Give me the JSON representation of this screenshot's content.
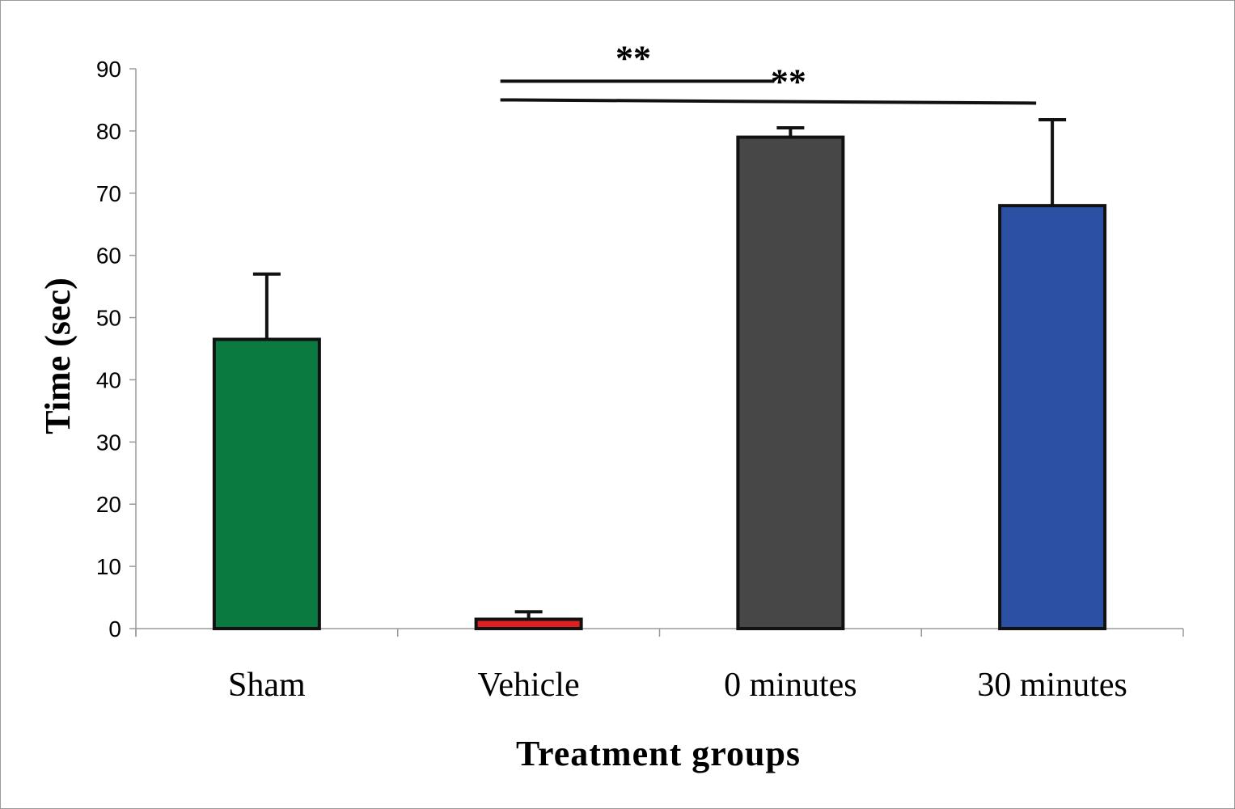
{
  "chart_data": {
    "type": "bar",
    "title": "",
    "xlabel": "Treatment groups",
    "ylabel": "Time (sec)",
    "ylim": [
      0,
      90
    ],
    "yticks": [
      0,
      10,
      20,
      30,
      40,
      50,
      60,
      70,
      80,
      90
    ],
    "yticklabels": [
      "0",
      "10",
      "20",
      "30",
      "40",
      "50",
      "60",
      "70",
      "80",
      "90"
    ],
    "categories": [
      "Sham",
      "Vehicle",
      "0 minutes",
      "30 minutes"
    ],
    "values": [
      46.5,
      1.5,
      79,
      68
    ],
    "errors": [
      10.5,
      1.2,
      1.5,
      13.8
    ],
    "colors": [
      "#0a7a40",
      "#e02020",
      "#474747",
      "#2c50a4"
    ],
    "grid": false,
    "legend": "none",
    "significance": [
      {
        "label": "**",
        "from_category": 1,
        "to_category": 2,
        "level": 88
      },
      {
        "label": "**",
        "from_category": 1,
        "to_category": 3,
        "level": 85
      }
    ]
  }
}
